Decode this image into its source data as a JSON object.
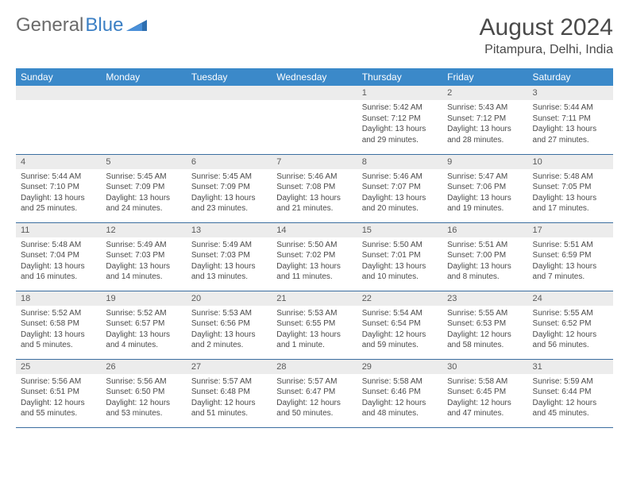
{
  "logo": {
    "text_gray": "General",
    "text_blue": "Blue"
  },
  "header": {
    "month_title": "August 2024",
    "location": "Pitampura, Delhi, India"
  },
  "colors": {
    "header_bar": "#3b89c9",
    "day_num_bg": "#ececec",
    "row_border": "#3b6ea0",
    "text_primary": "#4a4a4a",
    "logo_gray": "#6b6b6b",
    "logo_blue": "#3b7fc4"
  },
  "day_names": [
    "Sunday",
    "Monday",
    "Tuesday",
    "Wednesday",
    "Thursday",
    "Friday",
    "Saturday"
  ],
  "weeks": [
    [
      null,
      null,
      null,
      null,
      {
        "num": "1",
        "sunrise": "Sunrise: 5:42 AM",
        "sunset": "Sunset: 7:12 PM",
        "daylight": "Daylight: 13 hours and 29 minutes."
      },
      {
        "num": "2",
        "sunrise": "Sunrise: 5:43 AM",
        "sunset": "Sunset: 7:12 PM",
        "daylight": "Daylight: 13 hours and 28 minutes."
      },
      {
        "num": "3",
        "sunrise": "Sunrise: 5:44 AM",
        "sunset": "Sunset: 7:11 PM",
        "daylight": "Daylight: 13 hours and 27 minutes."
      }
    ],
    [
      {
        "num": "4",
        "sunrise": "Sunrise: 5:44 AM",
        "sunset": "Sunset: 7:10 PM",
        "daylight": "Daylight: 13 hours and 25 minutes."
      },
      {
        "num": "5",
        "sunrise": "Sunrise: 5:45 AM",
        "sunset": "Sunset: 7:09 PM",
        "daylight": "Daylight: 13 hours and 24 minutes."
      },
      {
        "num": "6",
        "sunrise": "Sunrise: 5:45 AM",
        "sunset": "Sunset: 7:09 PM",
        "daylight": "Daylight: 13 hours and 23 minutes."
      },
      {
        "num": "7",
        "sunrise": "Sunrise: 5:46 AM",
        "sunset": "Sunset: 7:08 PM",
        "daylight": "Daylight: 13 hours and 21 minutes."
      },
      {
        "num": "8",
        "sunrise": "Sunrise: 5:46 AM",
        "sunset": "Sunset: 7:07 PM",
        "daylight": "Daylight: 13 hours and 20 minutes."
      },
      {
        "num": "9",
        "sunrise": "Sunrise: 5:47 AM",
        "sunset": "Sunset: 7:06 PM",
        "daylight": "Daylight: 13 hours and 19 minutes."
      },
      {
        "num": "10",
        "sunrise": "Sunrise: 5:48 AM",
        "sunset": "Sunset: 7:05 PM",
        "daylight": "Daylight: 13 hours and 17 minutes."
      }
    ],
    [
      {
        "num": "11",
        "sunrise": "Sunrise: 5:48 AM",
        "sunset": "Sunset: 7:04 PM",
        "daylight": "Daylight: 13 hours and 16 minutes."
      },
      {
        "num": "12",
        "sunrise": "Sunrise: 5:49 AM",
        "sunset": "Sunset: 7:03 PM",
        "daylight": "Daylight: 13 hours and 14 minutes."
      },
      {
        "num": "13",
        "sunrise": "Sunrise: 5:49 AM",
        "sunset": "Sunset: 7:03 PM",
        "daylight": "Daylight: 13 hours and 13 minutes."
      },
      {
        "num": "14",
        "sunrise": "Sunrise: 5:50 AM",
        "sunset": "Sunset: 7:02 PM",
        "daylight": "Daylight: 13 hours and 11 minutes."
      },
      {
        "num": "15",
        "sunrise": "Sunrise: 5:50 AM",
        "sunset": "Sunset: 7:01 PM",
        "daylight": "Daylight: 13 hours and 10 minutes."
      },
      {
        "num": "16",
        "sunrise": "Sunrise: 5:51 AM",
        "sunset": "Sunset: 7:00 PM",
        "daylight": "Daylight: 13 hours and 8 minutes."
      },
      {
        "num": "17",
        "sunrise": "Sunrise: 5:51 AM",
        "sunset": "Sunset: 6:59 PM",
        "daylight": "Daylight: 13 hours and 7 minutes."
      }
    ],
    [
      {
        "num": "18",
        "sunrise": "Sunrise: 5:52 AM",
        "sunset": "Sunset: 6:58 PM",
        "daylight": "Daylight: 13 hours and 5 minutes."
      },
      {
        "num": "19",
        "sunrise": "Sunrise: 5:52 AM",
        "sunset": "Sunset: 6:57 PM",
        "daylight": "Daylight: 13 hours and 4 minutes."
      },
      {
        "num": "20",
        "sunrise": "Sunrise: 5:53 AM",
        "sunset": "Sunset: 6:56 PM",
        "daylight": "Daylight: 13 hours and 2 minutes."
      },
      {
        "num": "21",
        "sunrise": "Sunrise: 5:53 AM",
        "sunset": "Sunset: 6:55 PM",
        "daylight": "Daylight: 13 hours and 1 minute."
      },
      {
        "num": "22",
        "sunrise": "Sunrise: 5:54 AM",
        "sunset": "Sunset: 6:54 PM",
        "daylight": "Daylight: 12 hours and 59 minutes."
      },
      {
        "num": "23",
        "sunrise": "Sunrise: 5:55 AM",
        "sunset": "Sunset: 6:53 PM",
        "daylight": "Daylight: 12 hours and 58 minutes."
      },
      {
        "num": "24",
        "sunrise": "Sunrise: 5:55 AM",
        "sunset": "Sunset: 6:52 PM",
        "daylight": "Daylight: 12 hours and 56 minutes."
      }
    ],
    [
      {
        "num": "25",
        "sunrise": "Sunrise: 5:56 AM",
        "sunset": "Sunset: 6:51 PM",
        "daylight": "Daylight: 12 hours and 55 minutes."
      },
      {
        "num": "26",
        "sunrise": "Sunrise: 5:56 AM",
        "sunset": "Sunset: 6:50 PM",
        "daylight": "Daylight: 12 hours and 53 minutes."
      },
      {
        "num": "27",
        "sunrise": "Sunrise: 5:57 AM",
        "sunset": "Sunset: 6:48 PM",
        "daylight": "Daylight: 12 hours and 51 minutes."
      },
      {
        "num": "28",
        "sunrise": "Sunrise: 5:57 AM",
        "sunset": "Sunset: 6:47 PM",
        "daylight": "Daylight: 12 hours and 50 minutes."
      },
      {
        "num": "29",
        "sunrise": "Sunrise: 5:58 AM",
        "sunset": "Sunset: 6:46 PM",
        "daylight": "Daylight: 12 hours and 48 minutes."
      },
      {
        "num": "30",
        "sunrise": "Sunrise: 5:58 AM",
        "sunset": "Sunset: 6:45 PM",
        "daylight": "Daylight: 12 hours and 47 minutes."
      },
      {
        "num": "31",
        "sunrise": "Sunrise: 5:59 AM",
        "sunset": "Sunset: 6:44 PM",
        "daylight": "Daylight: 12 hours and 45 minutes."
      }
    ]
  ]
}
